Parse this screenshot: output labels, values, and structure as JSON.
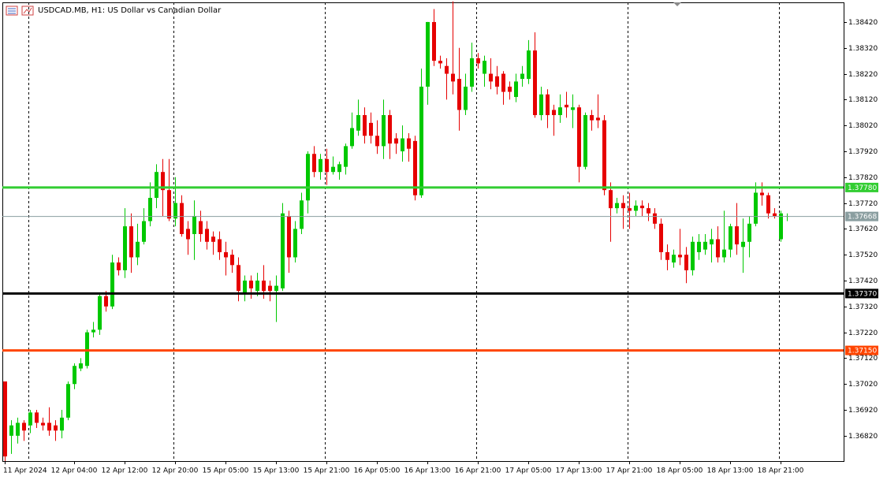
{
  "chart_data": {
    "type": "candlestick",
    "title": "USDCAD.MB, H1:  US Dollar vs Canadian Dollar",
    "categories": [
      "11 Apr 2024",
      null,
      null,
      null,
      null,
      null,
      null,
      null,
      null,
      null,
      null,
      "12 Apr 04:00",
      null,
      null,
      null,
      null,
      null,
      null,
      null,
      "12 Apr 12:00",
      null,
      null,
      null,
      null,
      null,
      null,
      null,
      "12 Apr 20:00",
      null,
      null,
      null,
      null,
      null,
      null,
      null,
      "15 Apr 05:00",
      null,
      null,
      null,
      null,
      null,
      null,
      null,
      "15 Apr 13:00",
      null,
      null,
      null,
      null,
      null,
      null,
      null,
      "15 Apr 21:00",
      null,
      null,
      null,
      null,
      null,
      null,
      null,
      "16 Apr 05:00",
      null,
      null,
      null,
      null,
      null,
      null,
      null,
      "16 Apr 13:00",
      null,
      null,
      null,
      null,
      null,
      null,
      null,
      "16 Apr 21:00",
      null,
      null,
      null,
      null,
      null,
      null,
      null,
      "17 Apr 05:00",
      null,
      null,
      null,
      null,
      null,
      null,
      null,
      "17 Apr 13:00",
      null,
      null,
      null,
      null,
      null,
      null,
      null,
      "17 Apr 21:00",
      null,
      null,
      null,
      null,
      null,
      null,
      null,
      "18 Apr 05:00",
      null,
      null,
      null,
      null,
      null,
      null,
      null,
      "18 Apr 13:00",
      null,
      null,
      null,
      null,
      null,
      null,
      null,
      "18 Apr 21:00",
      null
    ],
    "open": [
      1.3703,
      1.3682,
      1.3682,
      1.3687,
      1.3686,
      1.3691,
      1.3687,
      1.3687,
      1.3686,
      1.3684,
      1.3689,
      1.3702,
      1.3708,
      1.3709,
      1.3722,
      1.3723,
      1.3736,
      1.3732,
      1.3749,
      1.3746,
      1.3763,
      1.3751,
      1.3757,
      1.3765,
      1.3774,
      1.3784,
      1.3777,
      1.3766,
      1.3772,
      1.3762,
      1.376,
      1.3765,
      1.3762,
      1.3759,
      1.3758,
      1.3753,
      1.3752,
      1.3748,
      1.3737,
      1.3742,
      1.3738,
      1.3742,
      1.374,
      1.3738,
      1.3739,
      1.3767,
      1.3751,
      1.3762,
      1.3773,
      1.3791,
      1.3784,
      1.3789,
      1.3784,
      1.3784,
      1.3786,
      1.3794,
      1.38,
      1.3806,
      1.3803,
      1.3798,
      1.3794,
      1.3806,
      1.3797,
      1.3792,
      1.3797,
      1.3796,
      1.3775,
      1.3817,
      1.3842,
      1.3827,
      1.3825,
      1.3822,
      1.382,
      1.3808,
      1.3817,
      1.3828,
      1.3822,
      1.3822,
      1.3821,
      1.3822,
      1.3817,
      1.3813,
      1.382,
      1.382,
      1.3831,
      1.3806,
      1.3814,
      1.3808,
      1.3806,
      1.381,
      1.3808,
      1.3809,
      1.3786,
      1.3806,
      1.3805,
      1.3804,
      1.3777,
      1.377,
      1.3772,
      1.377,
      1.3769,
      1.3771,
      1.377,
      1.3768,
      1.3764,
      1.3753,
      1.3749,
      1.3752,
      1.3752,
      1.3746,
      1.3753,
      1.3754,
      1.3756,
      1.3758,
      1.3751,
      1.3754,
      1.3763,
      1.3755,
      1.3757,
      1.3764,
      1.3776,
      1.3775,
      1.3768,
      1.3758,
      1.3767
    ],
    "high": [
      1.3703,
      1.3688,
      1.3689,
      1.3688,
      1.3692,
      1.3692,
      1.3689,
      1.3693,
      1.3688,
      1.3692,
      1.3703,
      1.371,
      1.3712,
      1.3723,
      1.3726,
      1.3737,
      1.3738,
      1.3752,
      1.3751,
      1.377,
      1.3768,
      1.3764,
      1.377,
      1.378,
      1.3787,
      1.3789,
      1.3789,
      1.3782,
      1.3775,
      1.3765,
      1.3773,
      1.3769,
      1.3765,
      1.3761,
      1.3761,
      1.3757,
      1.3754,
      1.3751,
      1.3744,
      1.3744,
      1.3745,
      1.3748,
      1.3742,
      1.3744,
      1.3772,
      1.3769,
      1.3765,
      1.3776,
      1.3792,
      1.3794,
      1.3791,
      1.3793,
      1.379,
      1.3788,
      1.3795,
      1.3807,
      1.3812,
      1.3809,
      1.3807,
      1.3804,
      1.3812,
      1.3808,
      1.3799,
      1.3802,
      1.3799,
      1.3798,
      1.3824,
      1.3842,
      1.3847,
      1.3829,
      1.3828,
      1.385,
      1.3832,
      1.3822,
      1.3834,
      1.383,
      1.3829,
      1.3828,
      1.3825,
      1.3823,
      1.3819,
      1.3822,
      1.3825,
      1.3835,
      1.3838,
      1.3817,
      1.3816,
      1.381,
      1.3814,
      1.3815,
      1.3814,
      1.381,
      1.3807,
      1.3808,
      1.3814,
      1.3806,
      1.378,
      1.3774,
      1.3775,
      1.3776,
      1.3773,
      1.3773,
      1.3772,
      1.377,
      1.3766,
      1.3756,
      1.3754,
      1.3762,
      1.3755,
      1.3759,
      1.376,
      1.376,
      1.3762,
      1.3763,
      1.3769,
      1.3764,
      1.3772,
      1.3766,
      1.3767,
      1.378,
      1.378,
      1.3776,
      1.377,
      1.3769,
      1.3768
    ],
    "low": [
      1.3672,
      1.3675,
      1.3679,
      1.368,
      1.3683,
      1.3685,
      1.3684,
      1.3682,
      1.368,
      1.3681,
      1.3688,
      1.37,
      1.3707,
      1.3708,
      1.372,
      1.3721,
      1.373,
      1.3731,
      1.3744,
      1.3743,
      1.3745,
      1.3748,
      1.3756,
      1.3763,
      1.377,
      1.3767,
      1.3765,
      1.3763,
      1.3759,
      1.3752,
      1.375,
      1.3757,
      1.3754,
      1.3752,
      1.375,
      1.3744,
      1.3745,
      1.3734,
      1.3734,
      1.3735,
      1.3736,
      1.3735,
      1.3734,
      1.3726,
      1.3738,
      1.3745,
      1.3749,
      1.376,
      1.3768,
      1.3782,
      1.3781,
      1.3779,
      1.3783,
      1.3781,
      1.3783,
      1.3793,
      1.3798,
      1.3795,
      1.3795,
      1.3791,
      1.3789,
      1.3789,
      1.3791,
      1.3788,
      1.3788,
      1.3773,
      1.3774,
      1.381,
      1.3825,
      1.3824,
      1.3812,
      1.3814,
      1.38,
      1.3806,
      1.3815,
      1.3824,
      1.3817,
      1.3816,
      1.3814,
      1.381,
      1.3812,
      1.3811,
      1.3817,
      1.3818,
      1.3805,
      1.3804,
      1.3801,
      1.3798,
      1.3803,
      1.3805,
      1.3801,
      1.378,
      1.3785,
      1.38,
      1.3801,
      1.3775,
      1.3757,
      1.3768,
      1.3762,
      1.3762,
      1.3767,
      1.3767,
      1.3765,
      1.3762,
      1.375,
      1.3746,
      1.3747,
      1.3748,
      1.3741,
      1.3744,
      1.375,
      1.3752,
      1.3749,
      1.3749,
      1.3749,
      1.3751,
      1.3752,
      1.3745,
      1.3751,
      1.3763,
      1.3771,
      1.3766,
      1.3766,
      1.3757,
      1.3765
    ],
    "close": [
      1.3674,
      1.3686,
      1.3687,
      1.3684,
      1.3691,
      1.3687,
      1.3686,
      1.3684,
      1.3684,
      1.3689,
      1.3702,
      1.3709,
      1.371,
      1.3722,
      1.3723,
      1.3736,
      1.3732,
      1.3749,
      1.3746,
      1.3763,
      1.3751,
      1.3757,
      1.3765,
      1.3774,
      1.3784,
      1.3777,
      1.3766,
      1.3772,
      1.376,
      1.3758,
      1.3767,
      1.376,
      1.3757,
      1.3757,
      1.3753,
      1.3751,
      1.3748,
      1.3738,
      1.3742,
      1.3739,
      1.3742,
      1.3738,
      1.3738,
      1.374,
      1.3768,
      1.3751,
      1.3762,
      1.3773,
      1.3791,
      1.3784,
      1.3789,
      1.3784,
      1.3786,
      1.3787,
      1.3794,
      1.3801,
      1.3806,
      1.3798,
      1.3798,
      1.3794,
      1.3806,
      1.3795,
      1.3795,
      1.3797,
      1.3793,
      1.3775,
      1.3817,
      1.3842,
      1.3827,
      1.3826,
      1.3822,
      1.3819,
      1.3808,
      1.3817,
      1.3828,
      1.3826,
      1.3827,
      1.3819,
      1.3817,
      1.3815,
      1.3815,
      1.3819,
      1.3822,
      1.3831,
      1.3806,
      1.3814,
      1.3806,
      1.3806,
      1.3809,
      1.3809,
      1.3809,
      1.3786,
      1.3806,
      1.3804,
      1.3804,
      1.3777,
      1.377,
      1.3772,
      1.377,
      1.3769,
      1.3771,
      1.377,
      1.3768,
      1.3764,
      1.3753,
      1.375,
      1.3752,
      1.3751,
      1.3746,
      1.3757,
      1.3757,
      1.3757,
      1.3758,
      1.3751,
      1.3754,
      1.3763,
      1.3756,
      1.3757,
      1.3764,
      1.3776,
      1.3775,
      1.3768,
      1.3767,
      1.3768,
      1.3767
    ],
    "up_color": "#00c800",
    "down_color": "#e60000",
    "ylim": [
      1.36722,
      1.38496
    ],
    "yticks": [
      {
        "value": 1.3842,
        "label": "1.38420"
      },
      {
        "value": 1.3832,
        "label": "1.38320"
      },
      {
        "value": 1.3822,
        "label": "1.38220"
      },
      {
        "value": 1.3812,
        "label": "1.38120"
      },
      {
        "value": 1.3802,
        "label": "1.38020"
      },
      {
        "value": 1.3792,
        "label": "1.37920"
      },
      {
        "value": 1.3782,
        "label": "1.37820"
      },
      {
        "value": 1.3772,
        "label": "1.37720"
      },
      {
        "value": 1.3762,
        "label": "1.37620"
      },
      {
        "value": 1.3752,
        "label": "1.37520"
      },
      {
        "value": 1.3742,
        "label": "1.37420"
      },
      {
        "value": 1.3732,
        "label": "1.37320"
      },
      {
        "value": 1.3722,
        "label": "1.37220"
      },
      {
        "value": 1.3712,
        "label": "1.37120"
      },
      {
        "value": 1.3702,
        "label": "1.37020"
      },
      {
        "value": 1.3692,
        "label": "1.36920"
      },
      {
        "value": 1.3682,
        "label": "1.36820"
      }
    ],
    "levels": [
      {
        "value": 1.3778,
        "label": "1.37780",
        "color": "#32cd32"
      },
      {
        "value": 1.37668,
        "label": "1.37668",
        "color": "#8a9ea0"
      },
      {
        "value": 1.3737,
        "label": "1.37370",
        "color": "#000000"
      },
      {
        "value": 1.3715,
        "label": "1.37150",
        "color": "#ff4500"
      }
    ]
  }
}
